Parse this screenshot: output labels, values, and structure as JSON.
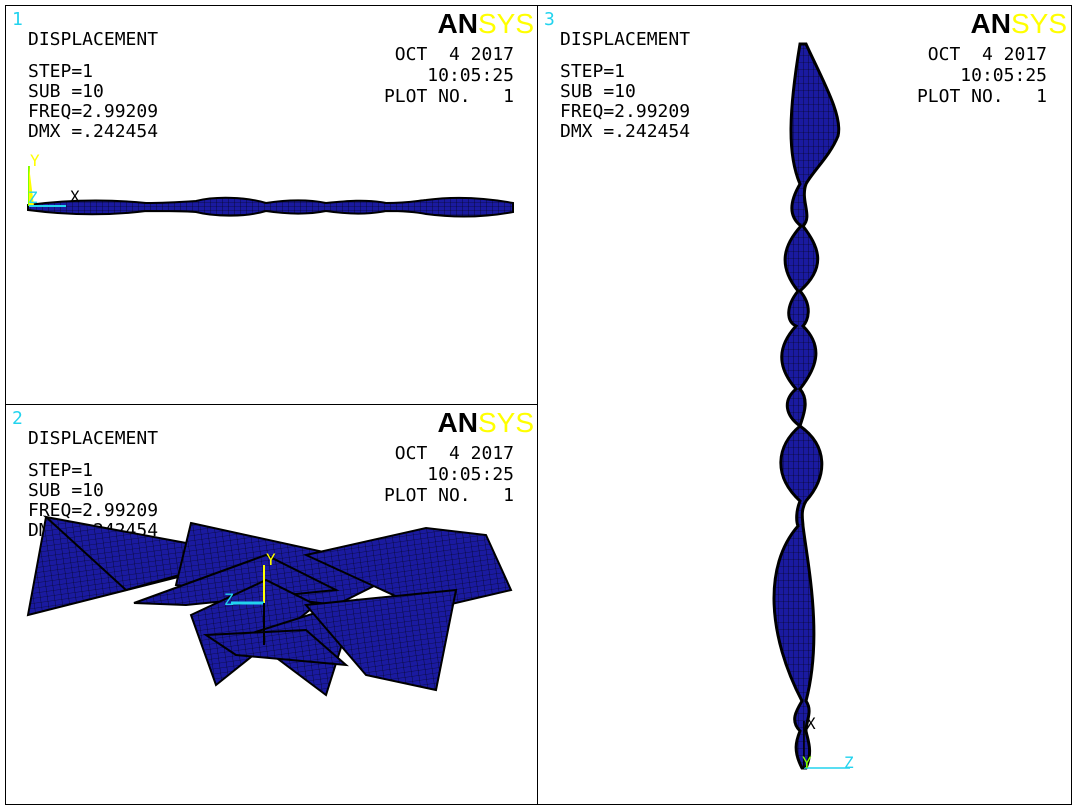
{
  "logo": {
    "part1": "AN",
    "part2": "SYS"
  },
  "panels": [
    {
      "number": "1",
      "title": "DISPLACEMENT",
      "step": "STEP=1",
      "sub": "SUB =10",
      "freq": "FREQ=2.99209",
      "dmx": "DMX =.242454",
      "date": "OCT  4 2017",
      "time": "10:05:25",
      "plot": "PLOT NO.   1",
      "axes": {
        "y": "Y",
        "z": "Z",
        "x": "X"
      }
    },
    {
      "number": "2",
      "title": "DISPLACEMENT",
      "step": "STEP=1",
      "sub": "SUB =10",
      "freq": "FREQ=2.99209",
      "dmx": "DMX =.242454",
      "date": "OCT  4 2017",
      "time": "10:05:25",
      "plot": "PLOT NO.   1",
      "axes": {
        "y": "Y",
        "z": "Z"
      }
    },
    {
      "number": "3",
      "title": "DISPLACEMENT",
      "step": "STEP=1",
      "sub": "SUB =10",
      "freq": "FREQ=2.99209",
      "dmx": "DMX =.242454",
      "date": "OCT  4 2017",
      "time": "10:05:25",
      "plot": "PLOT NO.   1",
      "axes": {
        "x": "X",
        "z": "Z",
        "y": "Y"
      }
    }
  ],
  "colors": {
    "mesh": "#1a1aa0",
    "outline": "#000000",
    "axis_cyan": "#22d3ee",
    "axis_yellow": "#ffff00",
    "axis_green": "#7fff00"
  }
}
